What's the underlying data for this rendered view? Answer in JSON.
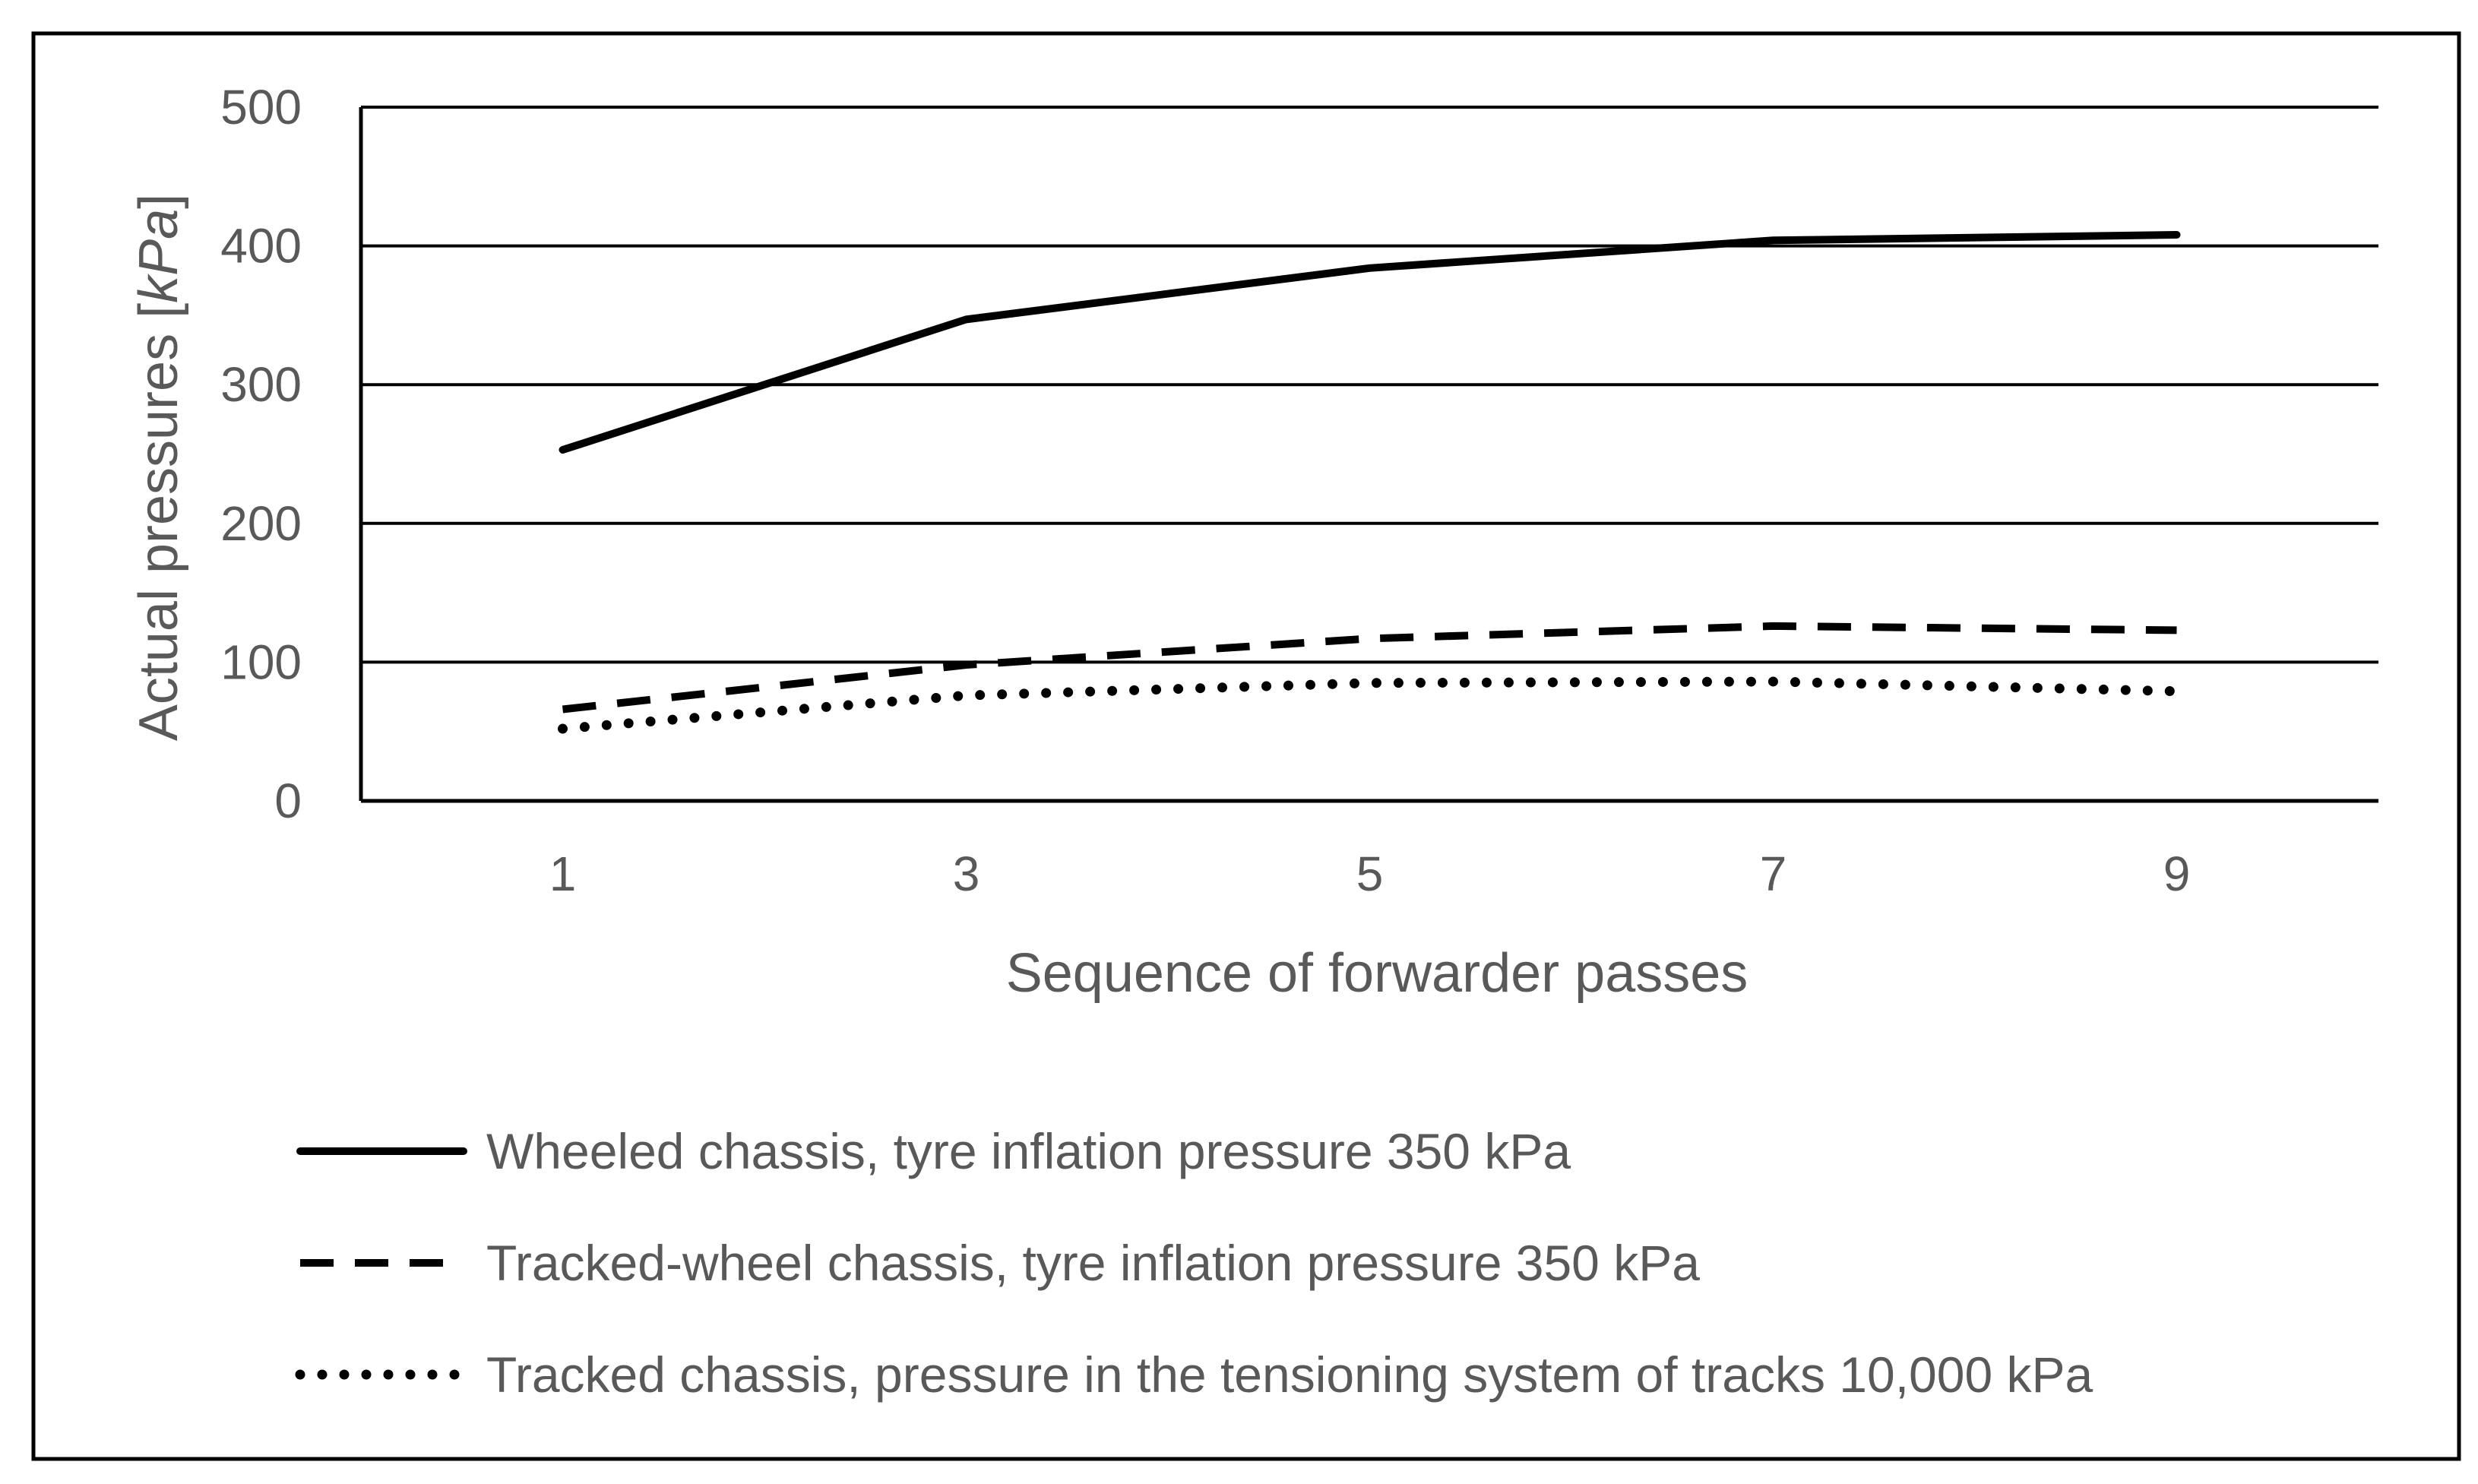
{
  "chart_data": {
    "type": "line",
    "title": "",
    "xlabel": "Sequence of forwarder passes",
    "ylabel": "Actual pressures",
    "ylabel_unit": "kPa",
    "categories": [
      "1",
      "3",
      "5",
      "7",
      "9"
    ],
    "x": [
      1,
      3,
      5,
      7,
      9
    ],
    "xlim": [
      0,
      10
    ],
    "ylim": [
      0,
      500
    ],
    "yticks": [
      0,
      100,
      200,
      300,
      400,
      500
    ],
    "grid": true,
    "legend_position": "bottom",
    "series": [
      {
        "name": "Wheeled chassis, tyre inflation pressure 350 kPa",
        "style": "solid",
        "color": "#000000",
        "values": [
          253,
          347,
          384,
          404,
          408
        ]
      },
      {
        "name": "Tracked-wheel chassis, tyre inflation pressure 350 kPa",
        "style": "dashed",
        "color": "#000000",
        "values": [
          66,
          98,
          117,
          126,
          123
        ]
      },
      {
        "name": "Tracked chassis, pressure in the tensioning system of tracks 10,000 kPa",
        "style": "dotted",
        "color": "#000000",
        "values": [
          52,
          76,
          85,
          86,
          79
        ]
      }
    ]
  },
  "colors": {
    "text": "#595959",
    "lines": "#000000",
    "border": "#000000"
  }
}
